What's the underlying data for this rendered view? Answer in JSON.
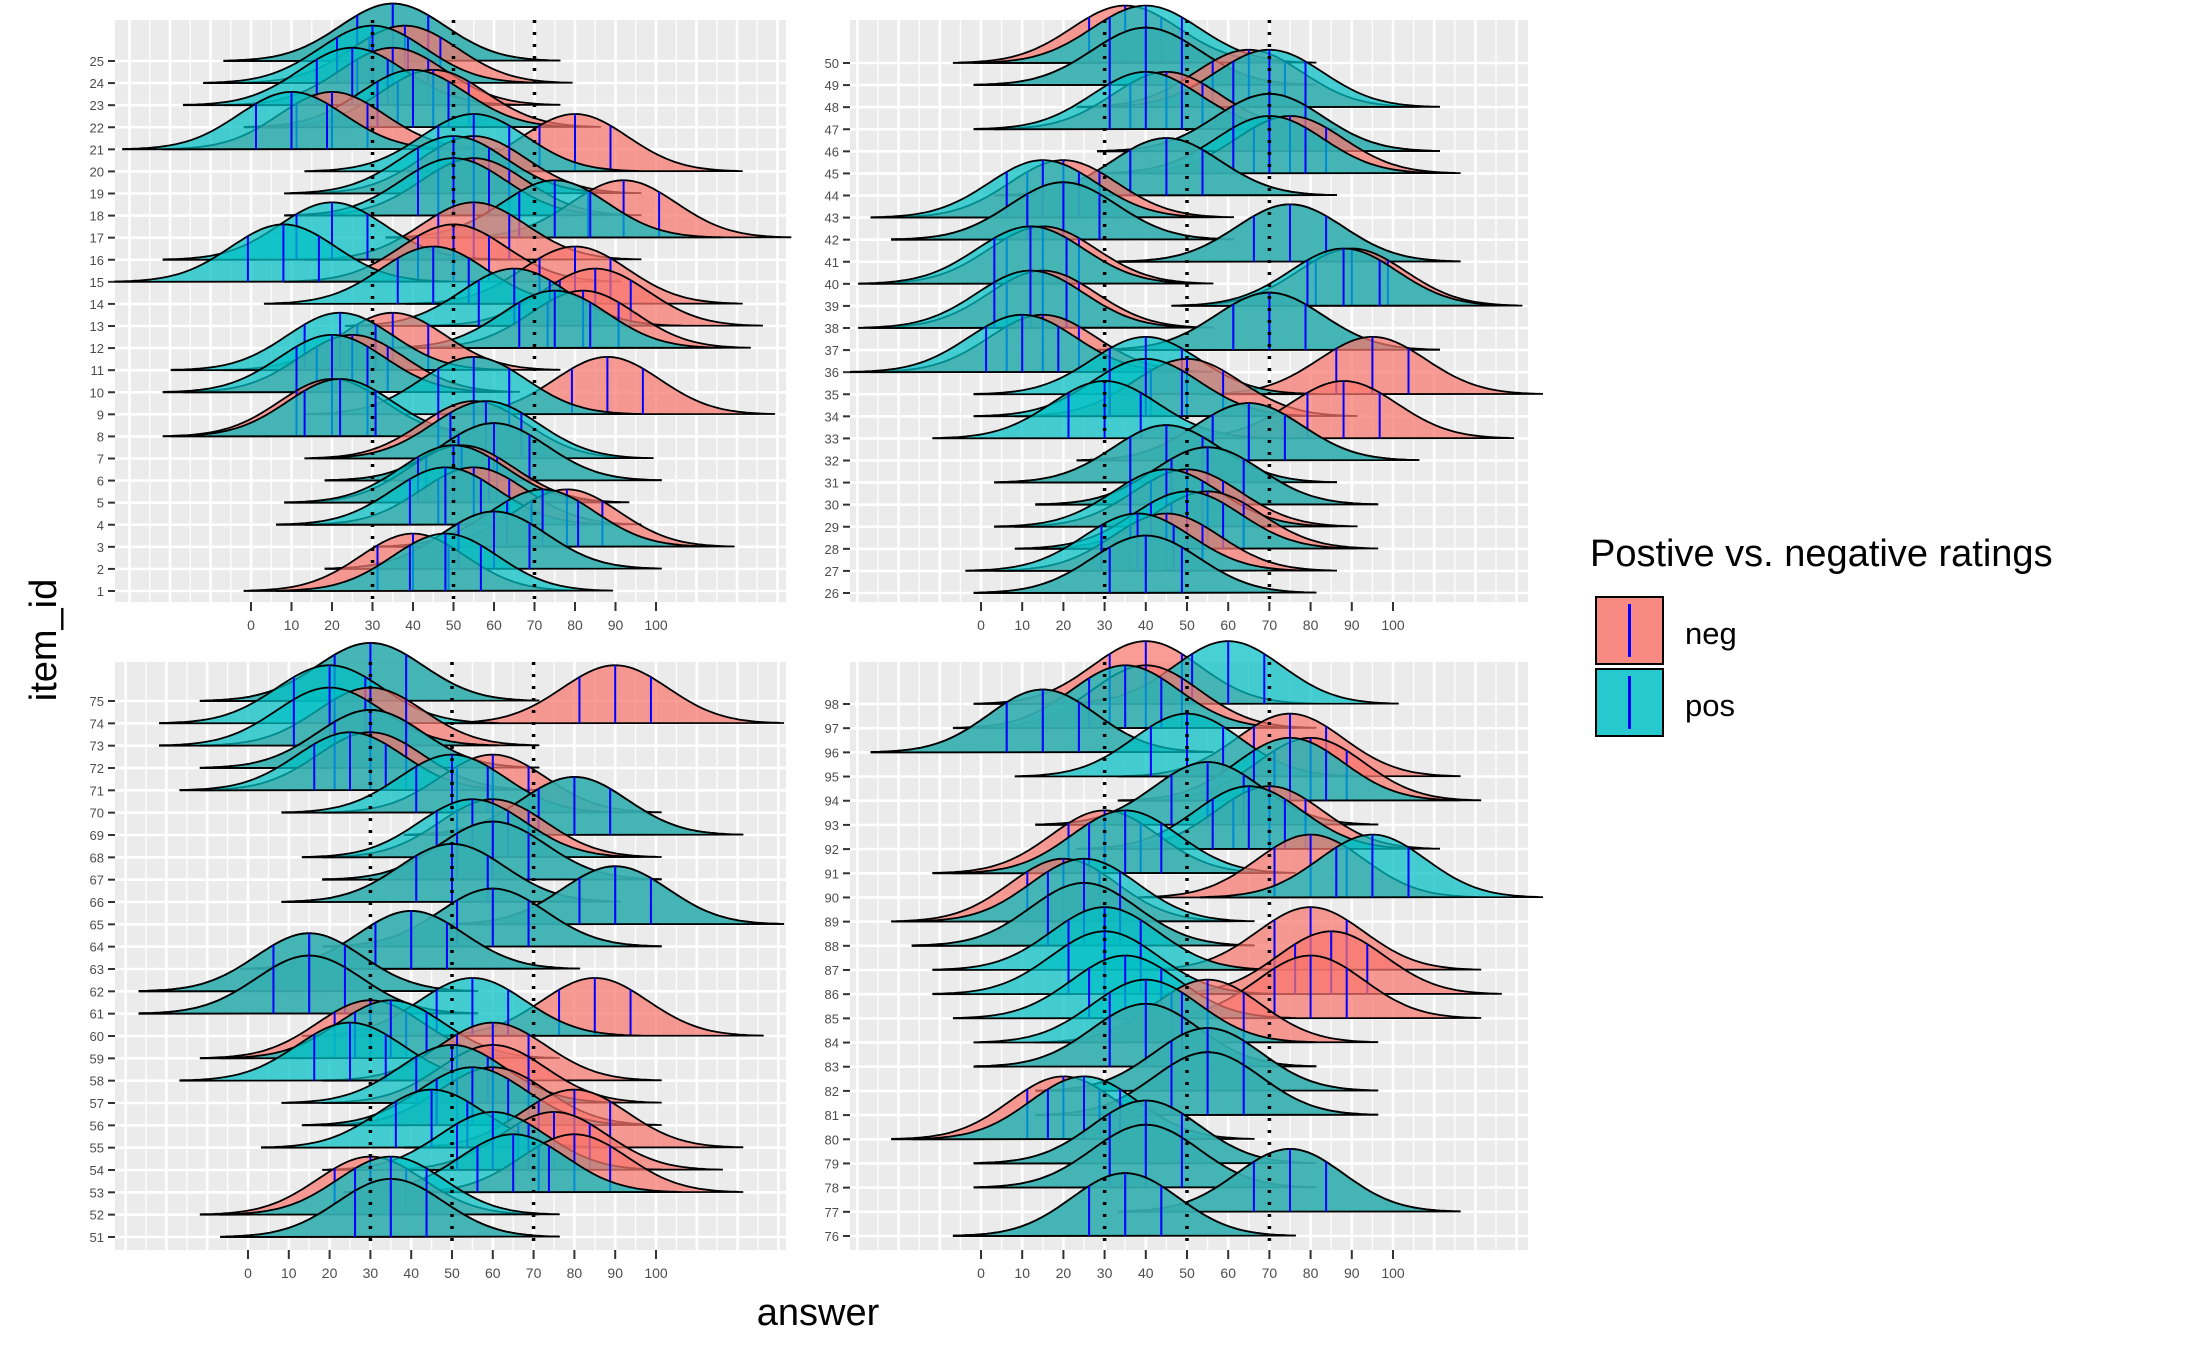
{
  "chart_data": {
    "type": "ridgeline",
    "xlabel": "answer",
    "ylabel": "item_id",
    "x_ticks": [
      0,
      10,
      20,
      30,
      40,
      50,
      60,
      70,
      80,
      90,
      100
    ],
    "reference_lines": [
      30,
      50,
      70
    ],
    "legend": {
      "title": "Postive vs. negative ratings",
      "placement": "right",
      "entries": [
        {
          "key": "neg",
          "label": "neg",
          "color": "#F8766D"
        },
        {
          "key": "pos",
          "label": "pos",
          "color": "#00BFC4"
        }
      ]
    },
    "colors": {
      "panel_bg": "#EBEBEB",
      "grid": "#FFFFFF",
      "quantile_line": "#0000FF",
      "outline": "#000000"
    },
    "panels": [
      {
        "items": [
          1,
          2,
          3,
          4,
          5,
          6,
          7,
          8,
          9,
          10,
          11,
          12,
          13,
          14,
          15,
          16,
          17,
          18,
          19,
          20,
          21,
          22,
          23,
          24,
          25
        ],
        "modes": {
          "1": {
            "neg": 40,
            "pos": 48
          },
          "2": {
            "neg": 60,
            "pos": 60
          },
          "3": {
            "neg": 78,
            "pos": 72
          },
          "4": {
            "neg": 55,
            "pos": 48
          },
          "5": {
            "neg": 52,
            "pos": 50
          },
          "6": {
            "neg": 60,
            "pos": 60
          },
          "7": {
            "neg": 55,
            "pos": 58
          },
          "8": {
            "neg": 20,
            "pos": 22
          },
          "9": {
            "neg": 88,
            "pos": 55
          },
          "10": {
            "neg": 25,
            "pos": 20
          },
          "11": {
            "neg": 35,
            "pos": 22
          },
          "12": {
            "neg": 82,
            "pos": 75
          },
          "13": {
            "neg": 85,
            "pos": 65
          },
          "14": {
            "neg": 80,
            "pos": 45
          },
          "15": {
            "neg": 50,
            "pos": 8
          },
          "16": {
            "neg": 55,
            "pos": 20
          },
          "17": {
            "neg": 92,
            "pos": 75
          },
          "18": {
            "neg": 55,
            "pos": 50
          },
          "19": {
            "neg": 55,
            "pos": 50
          },
          "20": {
            "neg": 80,
            "pos": 55
          },
          "21": {
            "neg": 20,
            "pos": 10
          },
          "22": {
            "neg": 45,
            "pos": 40
          },
          "23": {
            "neg": 35,
            "pos": 25
          },
          "24": {
            "neg": 38,
            "pos": 30
          },
          "25": {
            "neg": 35,
            "pos": 35
          }
        }
      },
      {
        "items": [
          26,
          27,
          28,
          29,
          30,
          31,
          32,
          33,
          34,
          35,
          36,
          37,
          38,
          39,
          40,
          41,
          42,
          43,
          44,
          45,
          46,
          47,
          48,
          49,
          50
        ],
        "modes": {
          "26": {
            "neg": 40,
            "pos": 40
          },
          "27": {
            "neg": 45,
            "pos": 38
          },
          "28": {
            "neg": 55,
            "pos": 50
          },
          "29": {
            "neg": 50,
            "pos": 45
          },
          "30": {
            "neg": 55,
            "pos": 55
          },
          "31": {
            "neg": 45,
            "pos": 45
          },
          "32": {
            "neg": 65,
            "pos": 65
          },
          "33": {
            "neg": 88,
            "pos": 30
          },
          "34": {
            "neg": 50,
            "pos": 40
          },
          "35": {
            "neg": 95,
            "pos": 40
          },
          "36": {
            "neg": 15,
            "pos": 10
          },
          "37": {
            "neg": 70,
            "pos": 70
          },
          "38": {
            "neg": 15,
            "pos": 12
          },
          "39": {
            "neg": 90,
            "pos": 88
          },
          "40": {
            "neg": 15,
            "pos": 12
          },
          "41": {
            "neg": 75,
            "pos": 75
          },
          "42": {
            "neg": 20,
            "pos": 20
          },
          "43": {
            "neg": 20,
            "pos": 15
          },
          "44": {
            "neg": 45,
            "pos": 45
          },
          "45": {
            "neg": 75,
            "pos": 70
          },
          "46": {
            "neg": 70,
            "pos": 70
          },
          "47": {
            "neg": 45,
            "pos": 40
          },
          "48": {
            "neg": 65,
            "pos": 70
          },
          "49": {
            "neg": 40,
            "pos": 40
          },
          "50": {
            "neg": 35,
            "pos": 40
          }
        }
      },
      {
        "items": [
          51,
          52,
          53,
          54,
          55,
          56,
          57,
          58,
          59,
          60,
          61,
          62,
          63,
          64,
          65,
          66,
          67,
          68,
          69,
          70,
          71,
          72,
          73,
          74,
          75
        ],
        "modes": {
          "51": {
            "neg": 35,
            "pos": 35
          },
          "52": {
            "neg": 30,
            "pos": 35
          },
          "53": {
            "neg": 80,
            "pos": 65
          },
          "54": {
            "neg": 75,
            "pos": 60
          },
          "55": {
            "neg": 80,
            "pos": 45
          },
          "56": {
            "neg": 60,
            "pos": 55
          },
          "57": {
            "neg": 60,
            "pos": 50
          },
          "58": {
            "neg": 60,
            "pos": 25
          },
          "59": {
            "neg": 30,
            "pos": 35
          },
          "60": {
            "neg": 85,
            "pos": 55
          },
          "61": {
            "neg": 15,
            "pos": 15
          },
          "62": {
            "neg": 15,
            "pos": 15
          },
          "63": {
            "neg": 40,
            "pos": 40
          },
          "64": {
            "neg": 60,
            "pos": 60
          },
          "65": {
            "neg": 90,
            "pos": 90
          },
          "66": {
            "neg": 50,
            "pos": 50
          },
          "67": {
            "neg": 60,
            "pos": 60
          },
          "68": {
            "neg": 60,
            "pos": 55
          },
          "69": {
            "neg": 80,
            "pos": 80
          },
          "70": {
            "neg": 60,
            "pos": 50
          },
          "71": {
            "neg": 30,
            "pos": 25
          },
          "72": {
            "neg": 30,
            "pos": 30
          },
          "73": {
            "neg": 30,
            "pos": 20
          },
          "74": {
            "neg": 90,
            "pos": 20
          },
          "75": {
            "neg": 30,
            "pos": 30
          }
        }
      },
      {
        "items": [
          76,
          77,
          78,
          79,
          80,
          81,
          82,
          83,
          84,
          85,
          86,
          87,
          88,
          89,
          90,
          91,
          92,
          93,
          94,
          95,
          96,
          97,
          98
        ],
        "modes": {
          "76": {
            "neg": 35,
            "pos": 35
          },
          "77": {
            "neg": 75,
            "pos": 75
          },
          "78": {
            "neg": 40,
            "pos": 40
          },
          "79": {
            "neg": 40,
            "pos": 40
          },
          "80": {
            "neg": 20,
            "pos": 25
          },
          "81": {
            "neg": 55,
            "pos": 55
          },
          "82": {
            "neg": 55,
            "pos": 55
          },
          "83": {
            "neg": 40,
            "pos": 40
          },
          "84": {
            "neg": 55,
            "pos": 40
          },
          "85": {
            "neg": 80,
            "pos": 35
          },
          "86": {
            "neg": 85,
            "pos": 30
          },
          "87": {
            "neg": 80,
            "pos": 30
          },
          "88": {
            "neg": 25,
            "pos": 25
          },
          "89": {
            "neg": 20,
            "pos": 25
          },
          "90": {
            "neg": 80,
            "pos": 95
          },
          "91": {
            "neg": 30,
            "pos": 35
          },
          "92": {
            "neg": 70,
            "pos": 65
          },
          "93": {
            "neg": 55,
            "pos": 55
          },
          "94": {
            "neg": 80,
            "pos": 75
          },
          "95": {
            "neg": 75,
            "pos": 50
          },
          "96": {
            "neg": 15,
            "pos": 15
          },
          "97": {
            "neg": 40,
            "pos": 35
          },
          "98": {
            "neg": 40,
            "pos": 60
          }
        }
      }
    ]
  }
}
